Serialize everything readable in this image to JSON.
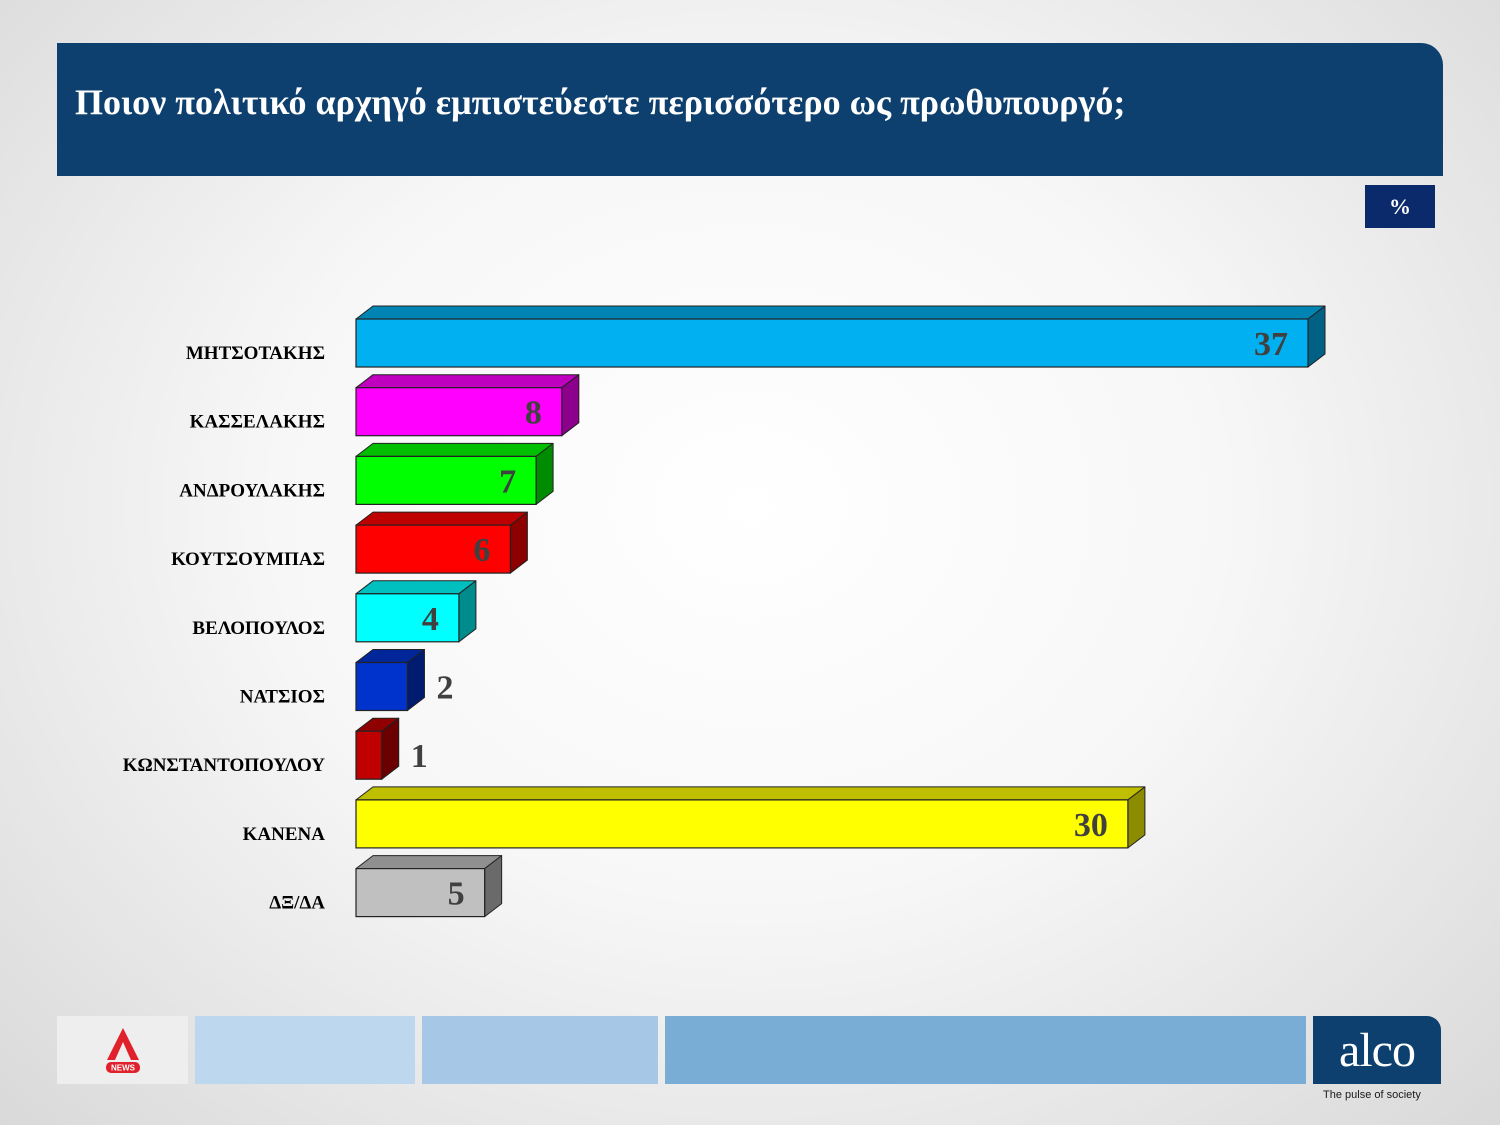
{
  "header": {
    "title": "Ποιον πολιτικό αρχηγό εμπιστεύεστε περισσότερο ως πρωθυπουργό;"
  },
  "unit_badge": "%",
  "chart_data": {
    "type": "bar",
    "orientation": "horizontal",
    "categories": [
      "ΜΗΤΣΟΤΑΚΗΣ",
      "ΚΑΣΣΕΛΑΚΗΣ",
      "ΑΝΔΡΟΥΛΑΚΗΣ",
      "ΚΟΥΤΣΟΥΜΠΑΣ",
      "ΒΕΛΟΠΟΥΛΟΣ",
      "ΝΑΤΣΙΟΣ",
      "ΚΩΝΣΤΑΝΤΟΠΟΥΛΟΥ",
      "ΚΑΝΕΝΑ",
      "ΔΞ/ΔΑ"
    ],
    "values": [
      37,
      8,
      7,
      6,
      4,
      2,
      1,
      30,
      5
    ],
    "colors": [
      "#00b0f0",
      "#ff00ff",
      "#00ff00",
      "#ff0000",
      "#00ffff",
      "#0033cc",
      "#c00000",
      "#ffff00",
      "#c0c0c0"
    ],
    "xlim": [
      0,
      37
    ],
    "grid": false,
    "style": "3d"
  },
  "footer": {
    "logo_text": "NEWS",
    "brand": "alco",
    "tagline": "The pulse of society",
    "strip_colors": [
      "#bdd7ee",
      "#a6c8e6",
      "#7aadd6"
    ]
  }
}
